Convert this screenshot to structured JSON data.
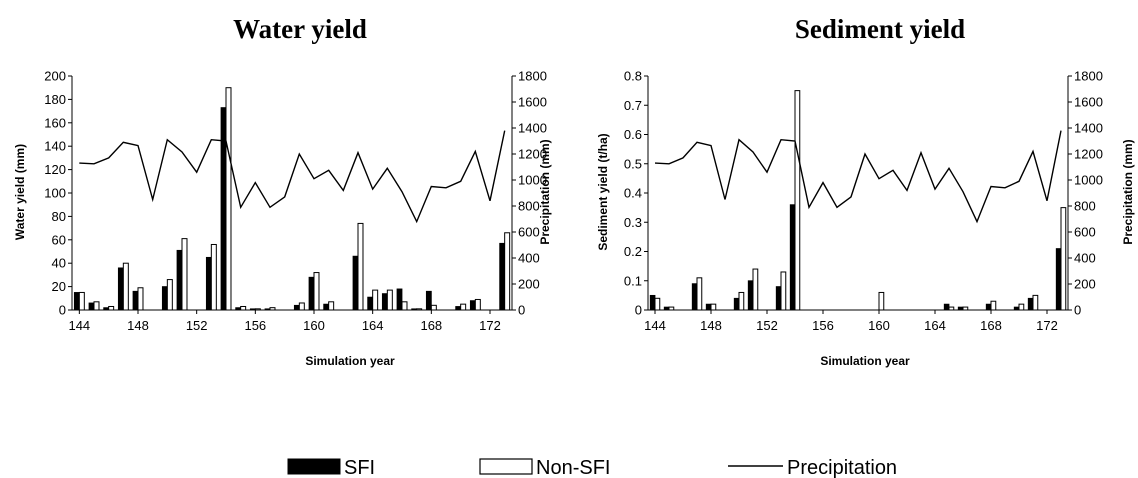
{
  "legend": {
    "sfi": "SFI",
    "nonsfi": "Non-SFI",
    "precip": "Precipitation"
  },
  "colors": {
    "sfi": "#000000",
    "nonsfi": "#ffffff",
    "line": "#000000"
  },
  "chart_data": [
    {
      "type": "bar",
      "title": "Water yield",
      "xlabel": "Simulation year",
      "ylabel": "Water yield (mm)",
      "y2label": "Precipitation (mm)",
      "xlim": [
        144,
        173
      ],
      "ylim": [
        0,
        200
      ],
      "y2lim": [
        0,
        1800
      ],
      "yticks": [
        0,
        20,
        40,
        60,
        80,
        100,
        120,
        140,
        160,
        180,
        200
      ],
      "y2ticks": [
        0,
        200,
        400,
        600,
        800,
        1000,
        1200,
        1400,
        1600,
        1800
      ],
      "xticks": [
        144,
        148,
        152,
        156,
        160,
        164,
        168,
        172
      ],
      "years": [
        144,
        145,
        146,
        147,
        148,
        149,
        150,
        151,
        152,
        153,
        154,
        155,
        156,
        157,
        158,
        159,
        160,
        161,
        162,
        163,
        164,
        165,
        166,
        167,
        168,
        169,
        170,
        171,
        172,
        173
      ],
      "series": [
        {
          "name": "SFI",
          "kind": "bar",
          "values": [
            15,
            6,
            2,
            36,
            16,
            0,
            20,
            51,
            0,
            45,
            173,
            2,
            1,
            1,
            0,
            4,
            28,
            5,
            0,
            46,
            11,
            14,
            18,
            1,
            16,
            0,
            3,
            8,
            0,
            57
          ]
        },
        {
          "name": "Non-SFI",
          "kind": "bar",
          "values": [
            15,
            7,
            3,
            40,
            19,
            0,
            26,
            61,
            0,
            56,
            190,
            3,
            1,
            2,
            0,
            6,
            32,
            7,
            0,
            74,
            17,
            17,
            7,
            1,
            4,
            0,
            5,
            9,
            0,
            66
          ]
        },
        {
          "name": "Precipitation",
          "kind": "line",
          "axis": "right",
          "values": [
            1130,
            1125,
            1170,
            1290,
            1265,
            850,
            1310,
            1215,
            1060,
            1310,
            1300,
            790,
            980,
            790,
            870,
            1200,
            1010,
            1075,
            920,
            1210,
            930,
            1090,
            910,
            680,
            950,
            940,
            990,
            1220,
            840,
            1380
          ]
        }
      ]
    },
    {
      "type": "bar",
      "title": "Sediment yield",
      "xlabel": "Simulation year",
      "ylabel": "Sediment yield (t/ha)",
      "y2label": "Precipitation (mm)",
      "xlim": [
        144,
        173
      ],
      "ylim": [
        0,
        0.8
      ],
      "y2lim": [
        0,
        1800
      ],
      "yticks": [
        0,
        0.1,
        0.2,
        0.3,
        0.4,
        0.5,
        0.6,
        0.7,
        0.8
      ],
      "ytick_labels": [
        "0",
        "0.1",
        "0.2",
        "0.3",
        "0.4",
        "0.5",
        "0.6",
        "0.7",
        "0.8"
      ],
      "y2ticks": [
        0,
        200,
        400,
        600,
        800,
        1000,
        1200,
        1400,
        1600,
        1800
      ],
      "xticks": [
        144,
        148,
        152,
        156,
        160,
        164,
        168,
        172
      ],
      "years": [
        144,
        145,
        146,
        147,
        148,
        149,
        150,
        151,
        152,
        153,
        154,
        155,
        156,
        157,
        158,
        159,
        160,
        161,
        162,
        163,
        164,
        165,
        166,
        167,
        168,
        169,
        170,
        171,
        172,
        173
      ],
      "series": [
        {
          "name": "SFI",
          "kind": "bar",
          "values": [
            0.05,
            0.01,
            0,
            0.09,
            0.02,
            0,
            0.04,
            0.1,
            0,
            0.08,
            0.36,
            0,
            0,
            0,
            0,
            0,
            0,
            0,
            0,
            0,
            0,
            0.02,
            0.01,
            0,
            0.02,
            0,
            0.01,
            0.04,
            0,
            0.21
          ]
        },
        {
          "name": "Non-SFI",
          "kind": "bar",
          "values": [
            0.04,
            0.01,
            0,
            0.11,
            0.02,
            0,
            0.06,
            0.14,
            0,
            0.13,
            0.75,
            0,
            0,
            0,
            0,
            0,
            0.06,
            0,
            0,
            0,
            0,
            0.01,
            0.01,
            0,
            0.03,
            0,
            0.02,
            0.05,
            0,
            0.35
          ]
        },
        {
          "name": "Precipitation",
          "kind": "line",
          "axis": "right",
          "values": [
            1130,
            1125,
            1170,
            1290,
            1265,
            850,
            1310,
            1215,
            1060,
            1310,
            1300,
            790,
            980,
            790,
            870,
            1200,
            1010,
            1075,
            920,
            1210,
            930,
            1090,
            910,
            680,
            950,
            940,
            990,
            1220,
            840,
            1380
          ]
        }
      ]
    }
  ]
}
